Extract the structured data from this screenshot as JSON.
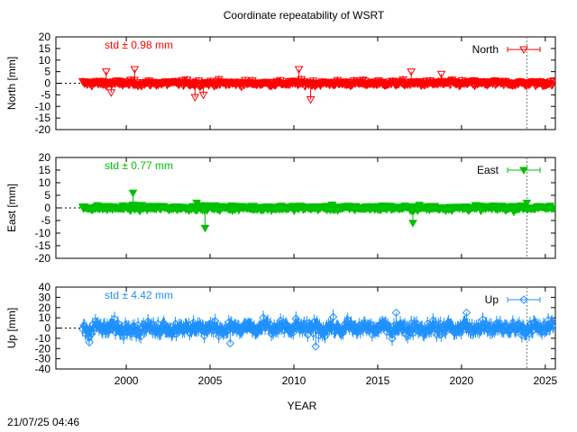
{
  "title": "Coordinate repeatability of WSRT",
  "timestamp": "21/07/25 04:46",
  "chart_data": {
    "type": "scatter",
    "title": "Coordinate repeatability of WSRT",
    "xlabel": "YEAR",
    "xlim": [
      1995.8,
      2025.6
    ],
    "xticks": [
      2000,
      2005,
      2010,
      2015,
      2020,
      2025
    ],
    "xtick_labels": [
      "2000",
      "2005",
      "2010",
      "2015",
      "2020",
      "2025"
    ],
    "data_start": 1997.4,
    "data_end": 2025.5,
    "reference_line_x": 2023.9,
    "grid": false,
    "legend_position": "top-right",
    "panels": [
      {
        "name": "North",
        "ylabel": "North [mm]",
        "ylim": [
          -20,
          20
        ],
        "yticks": [
          20,
          15,
          10,
          5,
          0,
          -5,
          -10,
          -15,
          -20
        ],
        "std_label": "std ± 0.98 mm",
        "std": 0.98,
        "color": "#ff0000",
        "marker": "triangle-down-open",
        "outliers": [
          {
            "x": 1998.8,
            "y": 5
          },
          {
            "x": 1999.1,
            "y": -4
          },
          {
            "x": 2000.5,
            "y": 6
          },
          {
            "x": 2004.1,
            "y": -6
          },
          {
            "x": 2004.6,
            "y": -5
          },
          {
            "x": 2010.3,
            "y": 6
          },
          {
            "x": 2011.0,
            "y": -7
          },
          {
            "x": 2017.0,
            "y": 5
          },
          {
            "x": 2018.8,
            "y": 4
          }
        ]
      },
      {
        "name": "East",
        "ylabel": "East [mm]",
        "ylim": [
          -20,
          20
        ],
        "yticks": [
          20,
          15,
          10,
          5,
          0,
          -5,
          -10,
          -15,
          -20
        ],
        "std_label": "std ± 0.77 mm",
        "std": 0.77,
        "color": "#00c000",
        "marker": "triangle-down-filled",
        "outliers": [
          {
            "x": 2000.4,
            "y": 6
          },
          {
            "x": 2004.7,
            "y": -8
          },
          {
            "x": 2017.1,
            "y": -6
          },
          {
            "x": 2004.2,
            "y": 2
          },
          {
            "x": 2023.9,
            "y": 2
          }
        ]
      },
      {
        "name": "Up",
        "ylabel": "Up [mm]",
        "ylim": [
          -40,
          40
        ],
        "yticks": [
          40,
          30,
          20,
          10,
          0,
          -10,
          -20,
          -30,
          -40
        ],
        "std_label": "std ± 4.42 mm",
        "std": 4.42,
        "color": "#1e90ff",
        "marker": "diamond-open",
        "outliers": [
          {
            "x": 2011.3,
            "y": -18
          },
          {
            "x": 2016.1,
            "y": 15
          },
          {
            "x": 2020.3,
            "y": 15
          },
          {
            "x": 1997.8,
            "y": -14
          },
          {
            "x": 2006.2,
            "y": -15
          }
        ]
      }
    ]
  }
}
